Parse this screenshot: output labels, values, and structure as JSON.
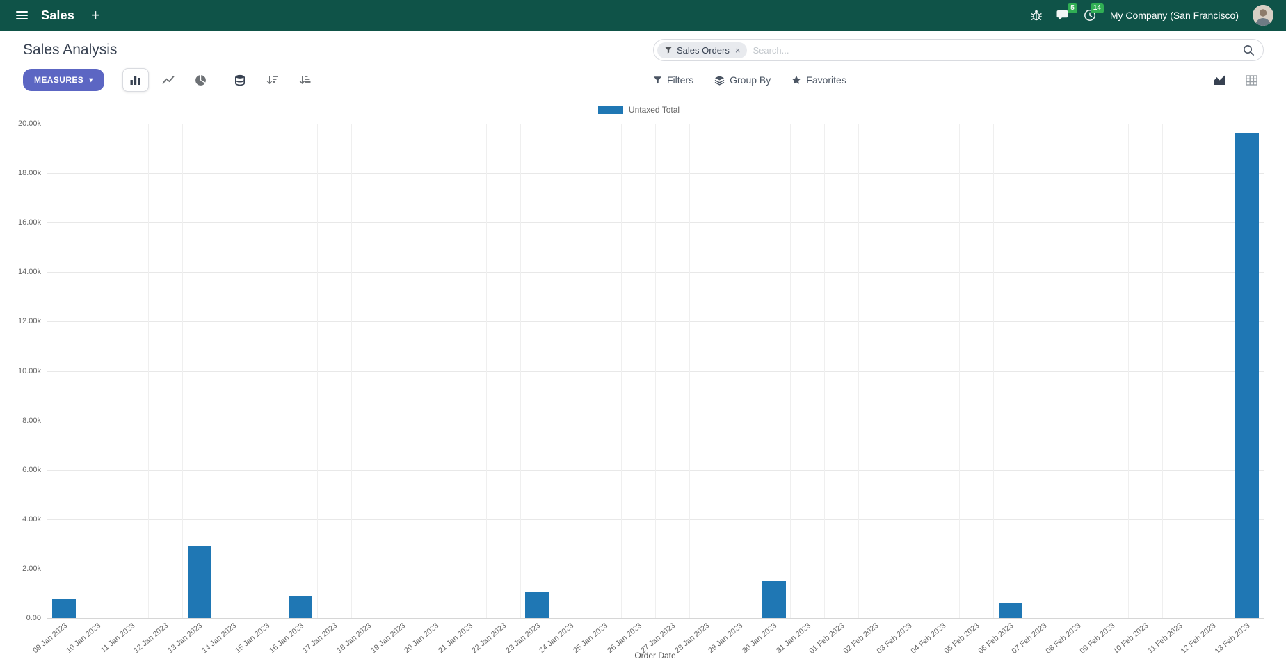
{
  "navbar": {
    "app_name": "Sales",
    "plus_label": "+",
    "company": "My Company (San Francisco)",
    "message_count": "5",
    "activity_count": "14"
  },
  "control_panel": {
    "title": "Sales Analysis",
    "measures_label": "MEASURES",
    "measures_caret": "▾",
    "filters_label": "Filters",
    "group_by_label": "Group By",
    "favorites_label": "Favorites",
    "search": {
      "facet_label": "Sales Orders",
      "facet_remove": "×",
      "placeholder": "Search..."
    }
  },
  "colors": {
    "navbar_bg": "#0f5348",
    "primary_button": "#5c66c3",
    "bar": "#1f77b4",
    "badge": "#32b455"
  },
  "chart_data": {
    "type": "bar",
    "title": "",
    "xlabel": "Order Date",
    "ylabel": "",
    "ylim": [
      0,
      20000
    ],
    "grid": true,
    "legend_position": "top",
    "ytick_labels": [
      "0.00",
      "2.00k",
      "4.00k",
      "6.00k",
      "8.00k",
      "10.00k",
      "12.00k",
      "14.00k",
      "16.00k",
      "18.00k",
      "20.00k"
    ],
    "ytick_values": [
      0,
      2000,
      4000,
      6000,
      8000,
      10000,
      12000,
      14000,
      16000,
      18000,
      20000
    ],
    "categories": [
      "09 Jan 2023",
      "10 Jan 2023",
      "11 Jan 2023",
      "12 Jan 2023",
      "13 Jan 2023",
      "14 Jan 2023",
      "15 Jan 2023",
      "16 Jan 2023",
      "17 Jan 2023",
      "18 Jan 2023",
      "19 Jan 2023",
      "20 Jan 2023",
      "21 Jan 2023",
      "22 Jan 2023",
      "23 Jan 2023",
      "24 Jan 2023",
      "25 Jan 2023",
      "26 Jan 2023",
      "27 Jan 2023",
      "28 Jan 2023",
      "29 Jan 2023",
      "30 Jan 2023",
      "31 Jan 2023",
      "01 Feb 2023",
      "02 Feb 2023",
      "03 Feb 2023",
      "04 Feb 2023",
      "05 Feb 2023",
      "06 Feb 2023",
      "07 Feb 2023",
      "08 Feb 2023",
      "09 Feb 2023",
      "10 Feb 2023",
      "11 Feb 2023",
      "12 Feb 2023",
      "13 Feb 2023"
    ],
    "series": [
      {
        "name": "Untaxed Total",
        "color": "#1f77b4",
        "values": [
          800,
          0,
          0,
          0,
          2900,
          0,
          0,
          900,
          0,
          0,
          0,
          0,
          0,
          0,
          1080,
          0,
          0,
          0,
          0,
          0,
          0,
          1500,
          0,
          0,
          0,
          0,
          0,
          0,
          620,
          0,
          0,
          0,
          0,
          0,
          0,
          19600
        ]
      }
    ]
  }
}
